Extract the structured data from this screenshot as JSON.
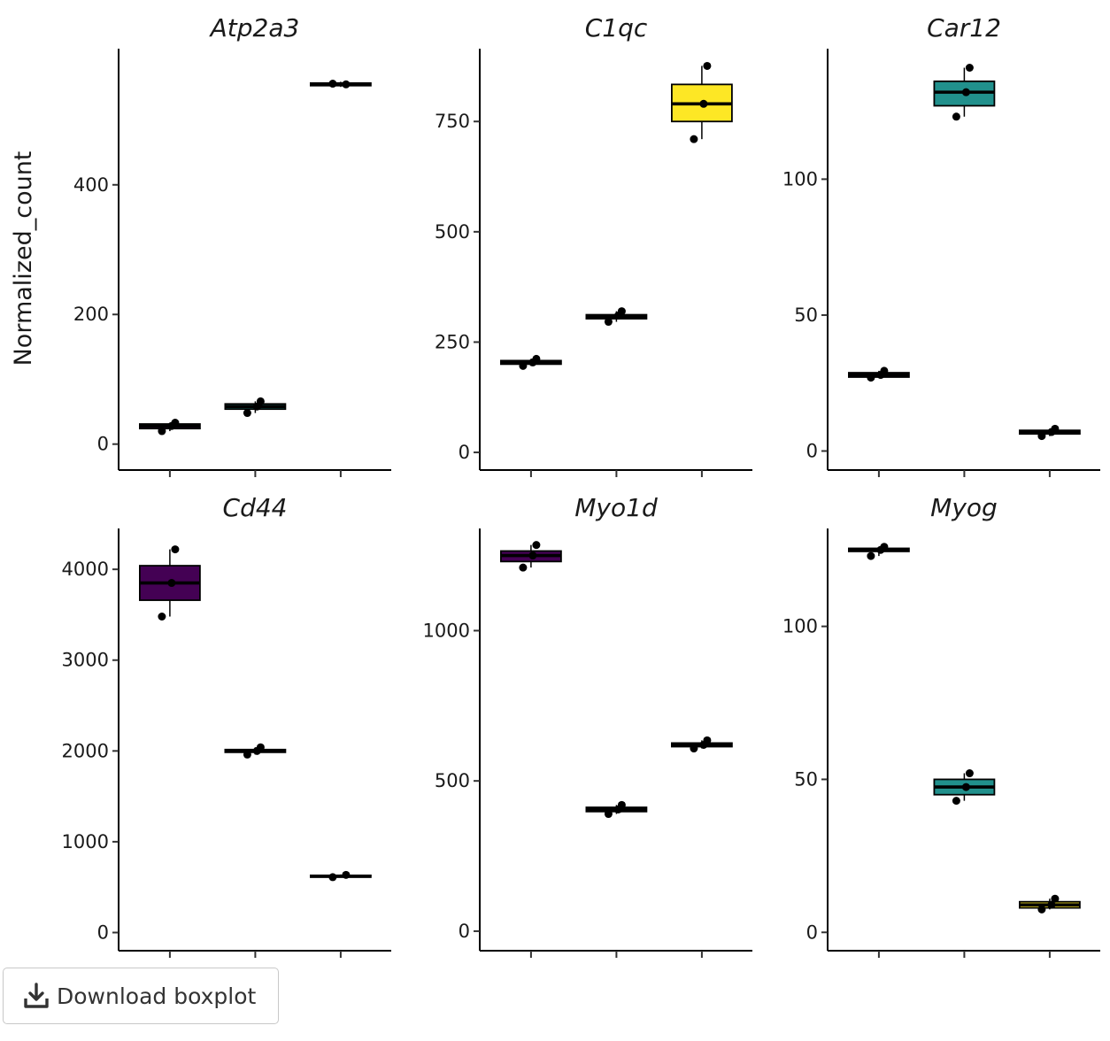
{
  "ylabel": "Normalized_count",
  "download_button": {
    "label": "Download boxplot",
    "icon": "download-icon"
  },
  "chart_data": [
    {
      "type": "box",
      "title": "Atp2a3",
      "ylim": [
        -40,
        610
      ],
      "yticks": [
        0,
        200,
        400
      ],
      "groups": [
        {
          "fill": "#440154",
          "q1": 24,
          "median": 28,
          "q3": 31,
          "min": 20,
          "max": 33,
          "points": [
            33,
            20,
            28
          ]
        },
        {
          "fill": "#21908C",
          "q1": 54,
          "median": 58,
          "q3": 62,
          "min": 48,
          "max": 66,
          "points": [
            66,
            48,
            58
          ]
        },
        {
          "fill": "#FDE725",
          "q1": 553,
          "median": 555,
          "q3": 557,
          "min": 551,
          "max": 559,
          "points": [
            555,
            556
          ]
        }
      ]
    },
    {
      "type": "box",
      "title": "C1qc",
      "ylim": [
        -40,
        915
      ],
      "yticks": [
        0,
        250,
        500,
        750
      ],
      "groups": [
        {
          "fill": "#440154",
          "q1": 200,
          "median": 204,
          "q3": 208,
          "min": 196,
          "max": 212,
          "points": [
            212,
            196,
            204
          ]
        },
        {
          "fill": "#21908C",
          "q1": 303,
          "median": 307,
          "q3": 312,
          "min": 296,
          "max": 320,
          "points": [
            320,
            296,
            310
          ]
        },
        {
          "fill": "#FDE725",
          "q1": 750,
          "median": 790,
          "q3": 834,
          "min": 710,
          "max": 876,
          "points": [
            876,
            710,
            790
          ]
        }
      ]
    },
    {
      "type": "box",
      "title": "Car12",
      "ylim": [
        -7,
        148
      ],
      "yticks": [
        0,
        50,
        100
      ],
      "groups": [
        {
          "fill": "#440154",
          "q1": 27.2,
          "median": 28,
          "q3": 28.8,
          "min": 27,
          "max": 29.5,
          "points": [
            29.5,
            27,
            28
          ]
        },
        {
          "fill": "#21908C",
          "q1": 127,
          "median": 132,
          "q3": 136,
          "min": 123,
          "max": 141,
          "points": [
            141,
            123,
            132
          ]
        },
        {
          "fill": "#FDE725",
          "q1": 6.3,
          "median": 7,
          "q3": 7.6,
          "min": 5.5,
          "max": 8.2,
          "points": [
            8.2,
            5.5,
            7
          ]
        }
      ]
    },
    {
      "type": "box",
      "title": "Cd44",
      "ylim": [
        -200,
        4450
      ],
      "yticks": [
        0,
        1000,
        2000,
        3000,
        4000
      ],
      "groups": [
        {
          "fill": "#440154",
          "q1": 3660,
          "median": 3850,
          "q3": 4040,
          "min": 3480,
          "max": 4220,
          "points": [
            4220,
            3480,
            3850
          ]
        },
        {
          "fill": "#21908C",
          "q1": 1985,
          "median": 2000,
          "q3": 2015,
          "min": 1960,
          "max": 2040,
          "points": [
            2040,
            1960,
            2000
          ]
        },
        {
          "fill": "#FDE725",
          "q1": 610,
          "median": 620,
          "q3": 630,
          "min": 605,
          "max": 640,
          "points": [
            635,
            610
          ]
        }
      ]
    },
    {
      "type": "box",
      "title": "Myo1d",
      "ylim": [
        -65,
        1340
      ],
      "yticks": [
        0,
        500,
        1000
      ],
      "groups": [
        {
          "fill": "#440154",
          "q1": 1230,
          "median": 1250,
          "q3": 1265,
          "min": 1210,
          "max": 1285,
          "points": [
            1285,
            1210,
            1250
          ]
        },
        {
          "fill": "#21908C",
          "q1": 398,
          "median": 405,
          "q3": 412,
          "min": 390,
          "max": 420,
          "points": [
            420,
            390,
            405
          ]
        },
        {
          "fill": "#FDE725",
          "q1": 614,
          "median": 620,
          "q3": 626,
          "min": 608,
          "max": 635,
          "points": [
            635,
            608,
            620
          ]
        }
      ]
    },
    {
      "type": "box",
      "title": "Myog",
      "ylim": [
        -6,
        132
      ],
      "yticks": [
        0,
        50,
        100
      ],
      "groups": [
        {
          "fill": "#440154",
          "q1": 124.5,
          "median": 125,
          "q3": 125.5,
          "min": 123,
          "max": 126,
          "points": [
            126,
            123,
            125
          ]
        },
        {
          "fill": "#21908C",
          "q1": 45,
          "median": 47.5,
          "q3": 50,
          "min": 43,
          "max": 52,
          "points": [
            52,
            43,
            47.5
          ]
        },
        {
          "fill": "#FDE725",
          "q1": 8,
          "median": 9,
          "q3": 10,
          "min": 7.5,
          "max": 11,
          "points": [
            11,
            7.5,
            9
          ]
        }
      ]
    }
  ]
}
